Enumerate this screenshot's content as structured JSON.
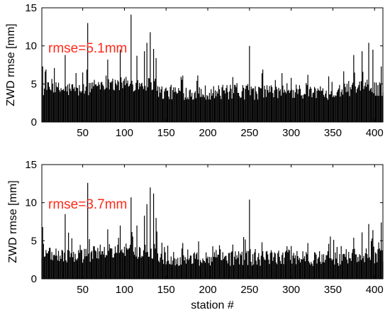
{
  "chart_data": [
    {
      "type": "bar",
      "panel": "top",
      "ylabel": "ZWD rmse [mm]",
      "xlabel": "",
      "annotation": "rmse=5.1mm",
      "annotation_color": "#ff2a1a",
      "bar_color": "#000000",
      "xlim": [
        1,
        410
      ],
      "ylim": [
        0,
        15
      ],
      "xticks": [
        "50",
        "100",
        "150",
        "200",
        "250",
        "300",
        "350",
        "400"
      ],
      "yticks": [
        "0",
        "5",
        "10",
        "15"
      ],
      "n_stations": 410,
      "baseline_by_segment": [
        {
          "x_range": [
            1,
            60
          ],
          "value": 4.3
        },
        {
          "x_range": [
            60,
            140
          ],
          "value": 5.0
        },
        {
          "x_range": [
            140,
            360
          ],
          "value": 3.9
        },
        {
          "x_range": [
            360,
            410
          ],
          "value": 4.4
        }
      ],
      "peaks": [
        {
          "x": 2,
          "y": 7.3
        },
        {
          "x": 29,
          "y": 8.8
        },
        {
          "x": 56,
          "y": 13.0
        },
        {
          "x": 80,
          "y": 8.2
        },
        {
          "x": 95,
          "y": 9.5
        },
        {
          "x": 108,
          "y": 14.1
        },
        {
          "x": 115,
          "y": 8.7
        },
        {
          "x": 124,
          "y": 9.3
        },
        {
          "x": 127,
          "y": 10.4
        },
        {
          "x": 131,
          "y": 11.8
        },
        {
          "x": 135,
          "y": 9.6
        },
        {
          "x": 138,
          "y": 8.4
        },
        {
          "x": 170,
          "y": 6.1
        },
        {
          "x": 230,
          "y": 5.9
        },
        {
          "x": 250,
          "y": 10.0
        },
        {
          "x": 265,
          "y": 6.4
        },
        {
          "x": 300,
          "y": 5.8
        },
        {
          "x": 320,
          "y": 6.2
        },
        {
          "x": 345,
          "y": 6.0
        },
        {
          "x": 375,
          "y": 8.8
        },
        {
          "x": 385,
          "y": 9.3
        },
        {
          "x": 393,
          "y": 10.4
        },
        {
          "x": 398,
          "y": 9.5
        },
        {
          "x": 408,
          "y": 7.3
        }
      ]
    },
    {
      "type": "bar",
      "panel": "bottom",
      "ylabel": "ZWD rmse [mm]",
      "xlabel": "station #",
      "annotation": "rmse=3.7mm",
      "annotation_color": "#ff2a1a",
      "bar_color": "#000000",
      "xlim": [
        1,
        410
      ],
      "ylim": [
        0,
        15
      ],
      "xticks": [
        "50",
        "100",
        "150",
        "200",
        "250",
        "300",
        "350",
        "400"
      ],
      "yticks": [
        "0",
        "5",
        "10",
        "15"
      ],
      "n_stations": 410,
      "baseline_by_segment": [
        {
          "x_range": [
            1,
            60
          ],
          "value": 3.1
        },
        {
          "x_range": [
            60,
            140
          ],
          "value": 3.6
        },
        {
          "x_range": [
            140,
            360
          ],
          "value": 2.7
        },
        {
          "x_range": [
            360,
            410
          ],
          "value": 3.0
        }
      ],
      "peaks": [
        {
          "x": 2,
          "y": 6.8
        },
        {
          "x": 29,
          "y": 8.5
        },
        {
          "x": 56,
          "y": 12.6
        },
        {
          "x": 80,
          "y": 6.5
        },
        {
          "x": 95,
          "y": 7.0
        },
        {
          "x": 108,
          "y": 10.7
        },
        {
          "x": 115,
          "y": 7.0
        },
        {
          "x": 124,
          "y": 8.3
        },
        {
          "x": 127,
          "y": 9.8
        },
        {
          "x": 131,
          "y": 12.0
        },
        {
          "x": 135,
          "y": 11.2
        },
        {
          "x": 138,
          "y": 8.0
        },
        {
          "x": 170,
          "y": 4.7
        },
        {
          "x": 230,
          "y": 4.5
        },
        {
          "x": 250,
          "y": 10.4
        },
        {
          "x": 265,
          "y": 4.8
        },
        {
          "x": 300,
          "y": 4.3
        },
        {
          "x": 320,
          "y": 4.7
        },
        {
          "x": 345,
          "y": 4.6
        },
        {
          "x": 375,
          "y": 5.4
        },
        {
          "x": 385,
          "y": 6.1
        },
        {
          "x": 393,
          "y": 7.2
        },
        {
          "x": 398,
          "y": 6.4
        },
        {
          "x": 408,
          "y": 7.4
        }
      ]
    }
  ]
}
